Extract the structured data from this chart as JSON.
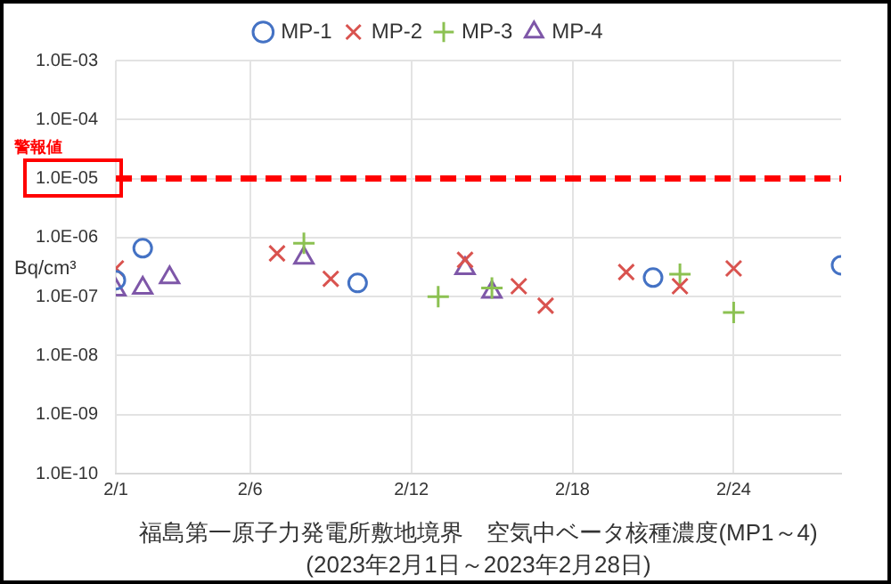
{
  "chart_data": {
    "type": "scatter",
    "title": "福島第一原子力発電所敷地境界　空気中ベータ核種濃度(MP1～4)",
    "subtitle": "(2023年2月1日～2023年2月28日)",
    "ylabel": "Bq/cm³",
    "log": "y",
    "grid": true,
    "legend": "top",
    "xlim": [
      "2023-02-01",
      "2023-02-28"
    ],
    "xticks": [
      {
        "value": "2023-02-01",
        "label": "2/1"
      },
      {
        "value": "2023-02-06",
        "label": "2/6"
      },
      {
        "value": "2023-02-12",
        "label": "2/12"
      },
      {
        "value": "2023-02-18",
        "label": "2/18"
      },
      {
        "value": "2023-02-24",
        "label": "2/24"
      }
    ],
    "ylim": [
      1e-10,
      0.001
    ],
    "yticks": [
      {
        "value": 1e-10,
        "label": "1.0E-10"
      },
      {
        "value": 1e-09,
        "label": "1.0E-09"
      },
      {
        "value": 1e-08,
        "label": "1.0E-08"
      },
      {
        "value": 1e-07,
        "label": "1.0E-07"
      },
      {
        "value": 1e-06,
        "label": "1.0E-06"
      },
      {
        "value": 1e-05,
        "label": "1.0E-05"
      },
      {
        "value": 0.0001,
        "label": "1.0E-04"
      },
      {
        "value": 0.001,
        "label": "1.0E-03"
      }
    ],
    "ref_lines": [
      {
        "axis": "y",
        "value": 1e-05,
        "label": "警報値",
        "color": "#ff0000",
        "line_style": "dashed"
      }
    ],
    "series": [
      {
        "name": "MP-1",
        "color": "#4472c4",
        "marker": "circle",
        "x": [
          "2023-02-01",
          "2023-02-02",
          "2023-02-10",
          "2023-02-21",
          "2023-02-28"
        ],
        "values": [
          1.9e-07,
          6.6e-07,
          1.7e-07,
          2.1e-07,
          3.4e-07
        ]
      },
      {
        "name": "MP-2",
        "color": "#d9534f",
        "marker": "x",
        "x": [
          "2023-02-01",
          "2023-02-07",
          "2023-02-09",
          "2023-02-14",
          "2023-02-16",
          "2023-02-17",
          "2023-02-20",
          "2023-02-22",
          "2023-02-24"
        ],
        "values": [
          3e-07,
          5.4e-07,
          2e-07,
          4.2e-07,
          1.5e-07,
          7e-08,
          2.6e-07,
          1.5e-07,
          3e-07
        ]
      },
      {
        "name": "MP-3",
        "color": "#8cc152",
        "marker": "cross",
        "x": [
          "2023-02-08",
          "2023-02-13",
          "2023-02-15",
          "2023-02-22",
          "2023-02-24"
        ],
        "values": [
          8e-07,
          1e-07,
          1.4e-07,
          2.4e-07,
          5.4e-08
        ]
      },
      {
        "name": "MP-4",
        "color": "#7e57a8",
        "marker": "triangle",
        "x": [
          "2023-02-01",
          "2023-02-02",
          "2023-02-03",
          "2023-02-08",
          "2023-02-14",
          "2023-02-15"
        ],
        "values": [
          1.3e-07,
          1.4e-07,
          2.1e-07,
          4.5e-07,
          3e-07,
          1.2e-07
        ]
      }
    ]
  }
}
